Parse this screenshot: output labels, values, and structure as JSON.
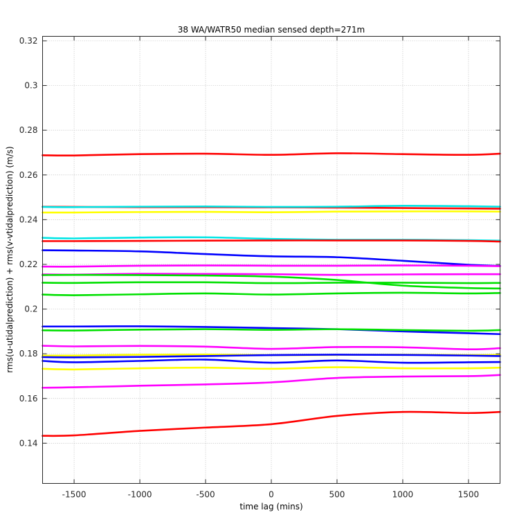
{
  "chart_data": {
    "type": "line",
    "title": "38 WA/WATR50 median sensed depth=271m",
    "xlabel": "time lag (mins)",
    "ylabel": "rms(u-utidalprediction) + rms(v-vtidalprediction) (m/s)",
    "xlim": [
      -1740,
      1740
    ],
    "ylim": [
      0.122,
      0.322
    ],
    "xticks": [
      -1500,
      -1000,
      -500,
      0,
      500,
      1000,
      1500
    ],
    "yticks": [
      0.14,
      0.16,
      0.18,
      0.2,
      0.22,
      0.24,
      0.26,
      0.28,
      0.3,
      0.32
    ],
    "grid": true,
    "x": [
      -1740,
      -1500,
      -1000,
      -500,
      0,
      500,
      1000,
      1500,
      1740
    ],
    "series": [
      {
        "color": "#ff0000",
        "values": [
          0.2688,
          0.2687,
          0.2693,
          0.2695,
          0.269,
          0.2697,
          0.2693,
          0.269,
          0.2695
        ]
      },
      {
        "color": "#ff0000",
        "values": [
          0.2458,
          0.2457,
          0.2456,
          0.2456,
          0.2455,
          0.2454,
          0.2452,
          0.245,
          0.2449
        ]
      },
      {
        "color": "#00e5e5",
        "values": [
          0.2457,
          0.2456,
          0.2458,
          0.2459,
          0.2457,
          0.2458,
          0.2462,
          0.246,
          0.2458
        ]
      },
      {
        "color": "#ffff00",
        "values": [
          0.2432,
          0.2432,
          0.2434,
          0.2435,
          0.2433,
          0.2436,
          0.2437,
          0.2437,
          0.2436
        ]
      },
      {
        "color": "#00e5e5",
        "values": [
          0.2319,
          0.2316,
          0.232,
          0.2321,
          0.2314,
          0.231,
          0.231,
          0.2308,
          0.2306
        ]
      },
      {
        "color": "#ff0000",
        "values": [
          0.2304,
          0.2304,
          0.2305,
          0.2306,
          0.2307,
          0.2307,
          0.2307,
          0.2305,
          0.2302
        ]
      },
      {
        "color": "#0000ff",
        "values": [
          0.2263,
          0.2262,
          0.2258,
          0.2246,
          0.2236,
          0.2232,
          0.2216,
          0.2198,
          0.2193
        ]
      },
      {
        "color": "#ff00ff",
        "values": [
          0.219,
          0.219,
          0.2194,
          0.2195,
          0.2194,
          0.2194,
          0.2195,
          0.2194,
          0.2192
        ]
      },
      {
        "color": "#ff00ff",
        "values": [
          0.2155,
          0.2154,
          0.2158,
          0.2157,
          0.2156,
          0.2153,
          0.2155,
          0.2156,
          0.2156
        ]
      },
      {
        "color": "#00e000",
        "values": [
          0.2152,
          0.2153,
          0.2152,
          0.215,
          0.2145,
          0.213,
          0.2105,
          0.2094,
          0.2092
        ]
      },
      {
        "color": "#00e000",
        "values": [
          0.2118,
          0.2117,
          0.212,
          0.212,
          0.2116,
          0.2118,
          0.2118,
          0.2116,
          0.2117
        ]
      },
      {
        "color": "#00e000",
        "values": [
          0.2065,
          0.2062,
          0.2066,
          0.207,
          0.2065,
          0.207,
          0.2073,
          0.207,
          0.2072
        ]
      },
      {
        "color": "#0000ff",
        "values": [
          0.1922,
          0.1922,
          0.1923,
          0.192,
          0.1915,
          0.191,
          0.19,
          0.1892,
          0.1888
        ]
      },
      {
        "color": "#00e000",
        "values": [
          0.1905,
          0.1904,
          0.1908,
          0.191,
          0.1907,
          0.191,
          0.1906,
          0.1903,
          0.1906
        ]
      },
      {
        "color": "#ff00ff",
        "values": [
          0.1836,
          0.1833,
          0.1835,
          0.1832,
          0.1822,
          0.183,
          0.1829,
          0.182,
          0.1825
        ]
      },
      {
        "color": "#ffff00",
        "values": [
          0.1792,
          0.1792,
          0.1796,
          0.1797,
          0.1794,
          0.1795,
          0.1796,
          0.1794,
          0.1795
        ]
      },
      {
        "color": "#0000ff",
        "values": [
          0.1785,
          0.1784,
          0.1786,
          0.179,
          0.1794,
          0.1796,
          0.1795,
          0.1792,
          0.179
        ]
      },
      {
        "color": "#0000ff",
        "values": [
          0.1768,
          0.1762,
          0.1768,
          0.1774,
          0.176,
          0.177,
          0.176,
          0.1762,
          0.1763
        ]
      },
      {
        "color": "#ffff00",
        "values": [
          0.1733,
          0.173,
          0.1735,
          0.1738,
          0.1733,
          0.174,
          0.1735,
          0.1735,
          0.1738
        ]
      },
      {
        "color": "#ff00ff",
        "values": [
          0.1648,
          0.165,
          0.1657,
          0.1663,
          0.1672,
          0.1692,
          0.1698,
          0.17,
          0.1705
        ]
      },
      {
        "color": "#ff0000",
        "values": [
          0.1433,
          0.1435,
          0.1455,
          0.147,
          0.1485,
          0.1522,
          0.154,
          0.1535,
          0.154
        ]
      }
    ]
  }
}
